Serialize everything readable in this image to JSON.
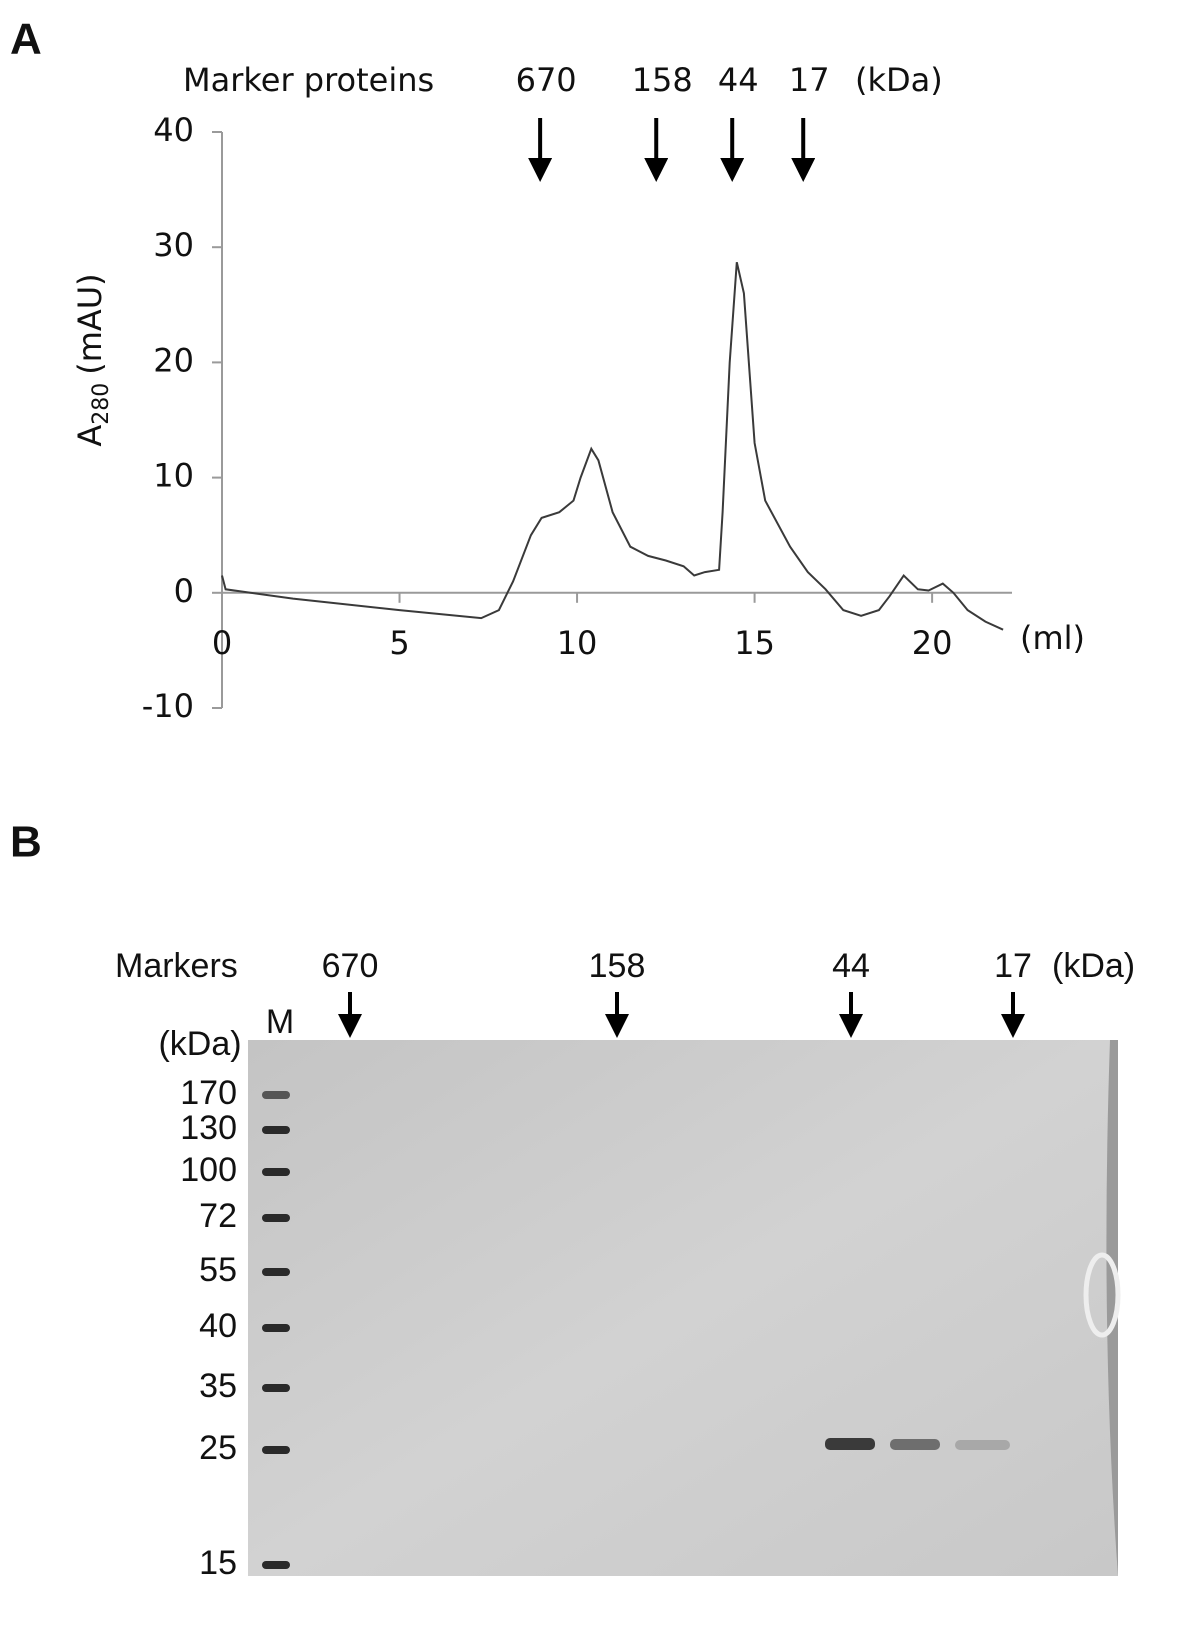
{
  "chart_data": {
    "type": "line",
    "panel_label": "A",
    "markers_label": "Marker proteins",
    "markers": [
      {
        "label": "670",
        "x": 8.96
      },
      {
        "label": "158",
        "x": 12.23
      },
      {
        "label": "44",
        "x": 14.37
      },
      {
        "label": "17",
        "x": 16.37
      }
    ],
    "markers_unit": "(kDa)",
    "x_label": "(ml)",
    "y_label": {
      "main": "A",
      "sub": "280",
      "unit": "(mAU)"
    },
    "x": [
      0,
      0.1,
      2,
      5,
      7.3,
      7.8,
      8.2,
      8.7,
      9,
      9.5,
      9.9,
      10.1,
      10.4,
      10.6,
      11,
      11.5,
      12,
      12.5,
      13,
      13.3,
      13.6,
      14,
      14.1,
      14.3,
      14.5,
      14.7,
      15,
      15.3,
      16,
      16.5,
      17,
      17.5,
      18,
      18.5,
      18.8,
      19.2,
      19.6,
      19.9,
      20.3,
      20.6,
      21,
      21.5,
      22
    ],
    "values": [
      1.5,
      0.3,
      -0.5,
      -1.5,
      -2.2,
      -1.5,
      1,
      5,
      6.5,
      7,
      8,
      10,
      12.5,
      11.5,
      7,
      4,
      3.2,
      2.8,
      2.3,
      1.5,
      1.8,
      2,
      7,
      20,
      28.7,
      26,
      13,
      8,
      4,
      1.8,
      0.3,
      -1.5,
      -2,
      -1.5,
      -0.3,
      1.5,
      0.3,
      0.2,
      0.8,
      0,
      -1.5,
      -2.5,
      -3.2
    ],
    "color": "#3a3a3a",
    "xlim": [
      0,
      22.25
    ],
    "ylim": [
      -10,
      40
    ],
    "xticks": [
      0,
      5,
      10,
      15,
      20
    ],
    "yticks": [
      -10,
      0,
      10,
      20,
      30,
      40
    ]
  },
  "gel": {
    "panel_label": "B",
    "markers_label": "Markers",
    "lane_markers": [
      "670",
      "158",
      "44",
      "17"
    ],
    "lane_markers_unit": "(kDa)",
    "ladder_lane": "M",
    "ladder_unit": "(kDa)",
    "ladder": [
      "170",
      "130",
      "100",
      "72",
      "55",
      "40",
      "35",
      "25",
      "15"
    ]
  }
}
